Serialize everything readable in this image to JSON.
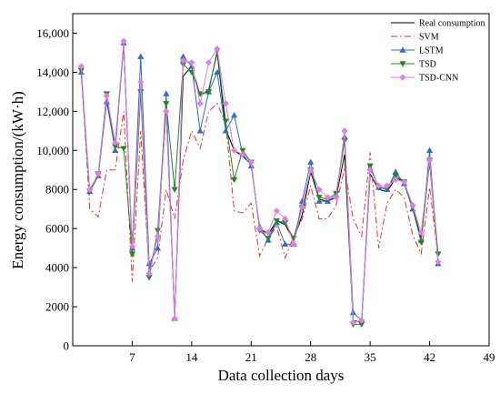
{
  "chart_data": {
    "type": "line",
    "title": "",
    "xlabel": "Data collection days",
    "ylabel": "Energy consumption/(kW·h)",
    "xlim": [
      0,
      49
    ],
    "ylim": [
      0,
      17000
    ],
    "xticks": [
      7,
      14,
      21,
      28,
      35,
      42,
      49
    ],
    "yticks": [
      0,
      2000,
      4000,
      6000,
      8000,
      10000,
      12000,
      14000,
      16000
    ],
    "ytick_labels": [
      "0",
      "2000",
      "4000",
      "6000",
      "8000",
      "10,000",
      "12,000",
      "14,000",
      "16,000"
    ],
    "grid": false,
    "legend_position": "top-right",
    "x": [
      1,
      2,
      3,
      4,
      5,
      6,
      7,
      8,
      9,
      10,
      11,
      12,
      13,
      14,
      15,
      16,
      17,
      18,
      19,
      20,
      21,
      22,
      23,
      24,
      25,
      26,
      27,
      28,
      29,
      30,
      31,
      32,
      33,
      34,
      35,
      36,
      37,
      38,
      39,
      40,
      41,
      42,
      43
    ],
    "series": [
      {
        "name": "Real consumption",
        "color": "#000000",
        "style": "solid",
        "marker": "none",
        "values": [
          14000,
          7900,
          8700,
          12600,
          10300,
          15400,
          4800,
          13200,
          3800,
          5600,
          12100,
          1400,
          13800,
          14300,
          12800,
          13100,
          15000,
          11100,
          10000,
          9700,
          9300,
          6000,
          5700,
          6400,
          6200,
          5400,
          6700,
          8900,
          7500,
          7400,
          7600,
          9800,
          1300,
          1200,
          8800,
          8000,
          7900,
          8600,
          8400,
          7100,
          5500,
          9400,
          4300
        ]
      },
      {
        "name": "SVM",
        "color": "#e8312a",
        "style": "dashdot",
        "marker": "none",
        "values": [
          14300,
          7000,
          6600,
          9000,
          9000,
          12000,
          3300,
          11000,
          3800,
          4500,
          8000,
          6500,
          9500,
          11000,
          10100,
          12000,
          12400,
          11400,
          6900,
          6800,
          7300,
          4600,
          5500,
          6100,
          4500,
          5600,
          6500,
          8200,
          6500,
          6500,
          7200,
          9100,
          6500,
          5600,
          9900,
          5000,
          7300,
          8000,
          7600,
          5700,
          4700,
          8100,
          4600
        ]
      },
      {
        "name": "LSTM",
        "color": "#2f6bd1",
        "style": "solid",
        "marker": "triangle-up",
        "values": [
          14000,
          7900,
          8700,
          12500,
          10000,
          15500,
          5000,
          14800,
          4200,
          5000,
          12900,
          1400,
          14800,
          14300,
          11000,
          13000,
          14000,
          11000,
          11800,
          9800,
          9200,
          6100,
          5400,
          6300,
          5200,
          5200,
          7400,
          9400,
          7400,
          7400,
          7700,
          10700,
          1700,
          1300,
          9100,
          8100,
          8000,
          8900,
          8300,
          7000,
          5400,
          10000,
          4200
        ]
      },
      {
        "name": "TSD",
        "color": "#1e8a1e",
        "style": "solid",
        "marker": "triangle-down",
        "values": [
          14100,
          7900,
          8800,
          12900,
          10200,
          10100,
          4700,
          13000,
          3500,
          5900,
          12400,
          8000,
          14400,
          14000,
          12900,
          13000,
          15100,
          11500,
          8500,
          10000,
          9400,
          5900,
          5500,
          6400,
          6300,
          5500,
          7100,
          9000,
          7600,
          7500,
          7800,
          10500,
          1100,
          1100,
          9200,
          8100,
          8100,
          8700,
          8400,
          7100,
          5300,
          9500,
          4700
        ]
      },
      {
        "name": "TSD-CNN",
        "color": "#e87ae8",
        "style": "solid",
        "marker": "diamond",
        "values": [
          14300,
          8000,
          8800,
          12800,
          10400,
          15600,
          5100,
          13500,
          3700,
          5600,
          12000,
          1400,
          14600,
          14500,
          12400,
          14500,
          15200,
          12400,
          10000,
          9800,
          9400,
          6000,
          5800,
          6900,
          6500,
          5200,
          7100,
          9000,
          8000,
          7600,
          7600,
          11000,
          1200,
          1300,
          9000,
          8200,
          8200,
          8500,
          8400,
          7200,
          5800,
          9500,
          4300
        ]
      }
    ]
  }
}
